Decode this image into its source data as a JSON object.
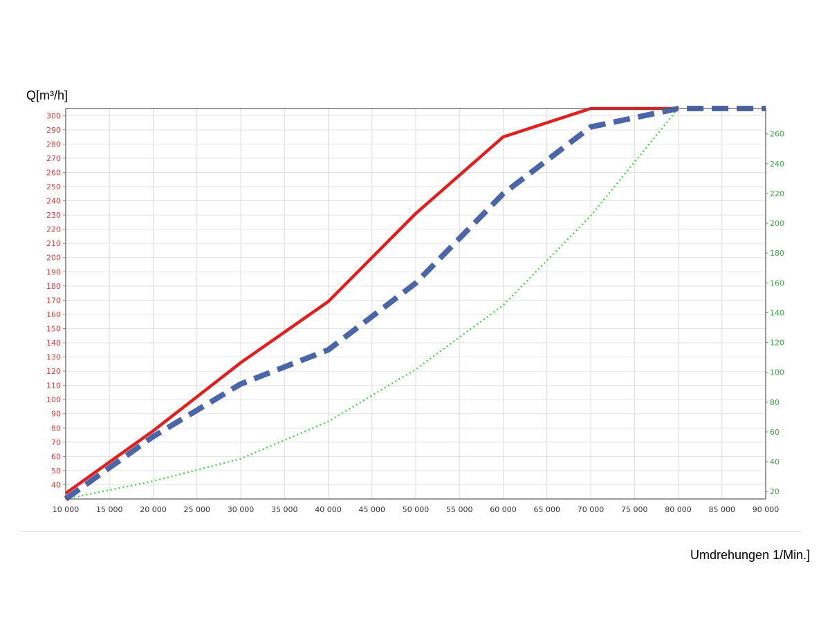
{
  "chart_data": {
    "type": "line",
    "ylabel": "Q[m³/h]",
    "xlabel": "Umdrehungen 1/Min.]",
    "xlim": [
      10000,
      90000
    ],
    "ylim_left": [
      30,
      305
    ],
    "ylim_right": [
      15,
      277
    ],
    "grid": true,
    "x_ticks": [
      10000,
      15000,
      20000,
      25000,
      30000,
      35000,
      40000,
      45000,
      50000,
      55000,
      60000,
      65000,
      70000,
      75000,
      80000,
      85000,
      90000
    ],
    "x_tick_labels": [
      "10 000",
      "15 000",
      "20 000",
      "25 000",
      "30 000",
      "35 000",
      "40 000",
      "45 000",
      "50 000",
      "55 000",
      "60 000",
      "65 000",
      "70 000",
      "75 000",
      "80 000",
      "85 000",
      "90 000"
    ],
    "left_ticks": [
      40,
      50,
      60,
      70,
      80,
      90,
      100,
      110,
      120,
      130,
      140,
      150,
      160,
      170,
      180,
      190,
      200,
      210,
      220,
      230,
      240,
      250,
      260,
      270,
      280,
      290,
      300
    ],
    "right_ticks": [
      20,
      40,
      60,
      80,
      100,
      120,
      140,
      160,
      180,
      200,
      220,
      240,
      260
    ],
    "series": [
      {
        "axis": "left",
        "color": "#e0201e",
        "style": "solid",
        "x": [
          10000,
          20000,
          30000,
          40000,
          50000,
          60000,
          70000,
          80000
        ],
        "y": [
          34,
          78,
          126,
          169,
          231,
          285,
          305,
          305
        ]
      },
      {
        "axis": "left",
        "color": "#4a66a6",
        "style": "dashed",
        "x": [
          10000,
          20000,
          30000,
          40000,
          50000,
          60000,
          70000,
          80000,
          90000
        ],
        "y": [
          30,
          74,
          111,
          135,
          182,
          245,
          292,
          305,
          305
        ]
      },
      {
        "axis": "right",
        "color": "#44d44a",
        "style": "dotted",
        "x": [
          10000,
          20000,
          30000,
          40000,
          50000,
          60000,
          70000,
          80000
        ],
        "y": [
          15,
          27,
          42,
          67,
          102,
          145,
          205,
          277
        ]
      }
    ]
  }
}
